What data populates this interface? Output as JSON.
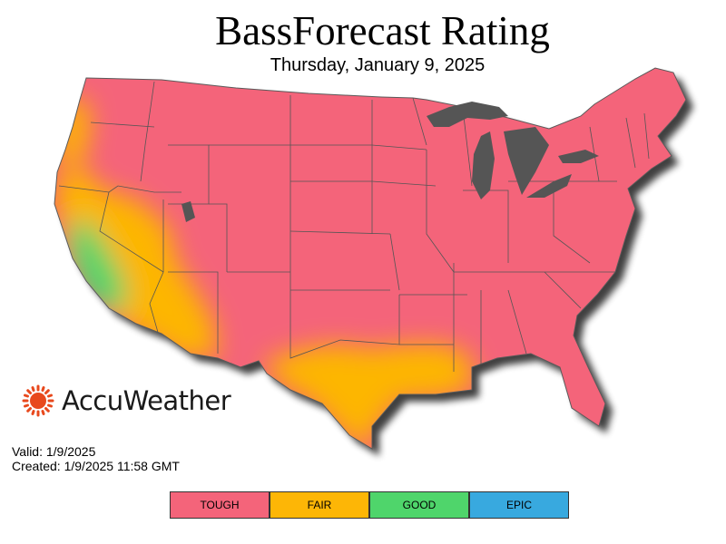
{
  "header": {
    "title": "BassForecast Rating",
    "date": "Thursday, January 9, 2025"
  },
  "brand": {
    "name": "AccuWeather",
    "logo_icon": "sun-icon",
    "logo_color": "#e8491d"
  },
  "meta": {
    "valid": "Valid: 1/9/2025",
    "created": "Created: 1/9/2025 11:58 GMT"
  },
  "legend": [
    {
      "label": "TOUGH",
      "color": "#f4647a"
    },
    {
      "label": "FAIR",
      "color": "#fdb606"
    },
    {
      "label": "GOOD",
      "color": "#4fd56b"
    },
    {
      "label": "EPIC",
      "color": "#38a9df"
    }
  ],
  "map": {
    "region": "Contiguous United States",
    "great_lakes_color": "#555555",
    "rating_by_area": {
      "TOUGH": "most of the country: Pacific Northwest interior, Rockies, Plains, Midwest, Northeast, Southeast, Florida",
      "FAIR": "coastal Oregon, northern and inland California, Nevada, western Arizona, southern and central Texas, southern Louisiana",
      "GOOD": "coastal central and southern California",
      "EPIC": "none"
    }
  }
}
